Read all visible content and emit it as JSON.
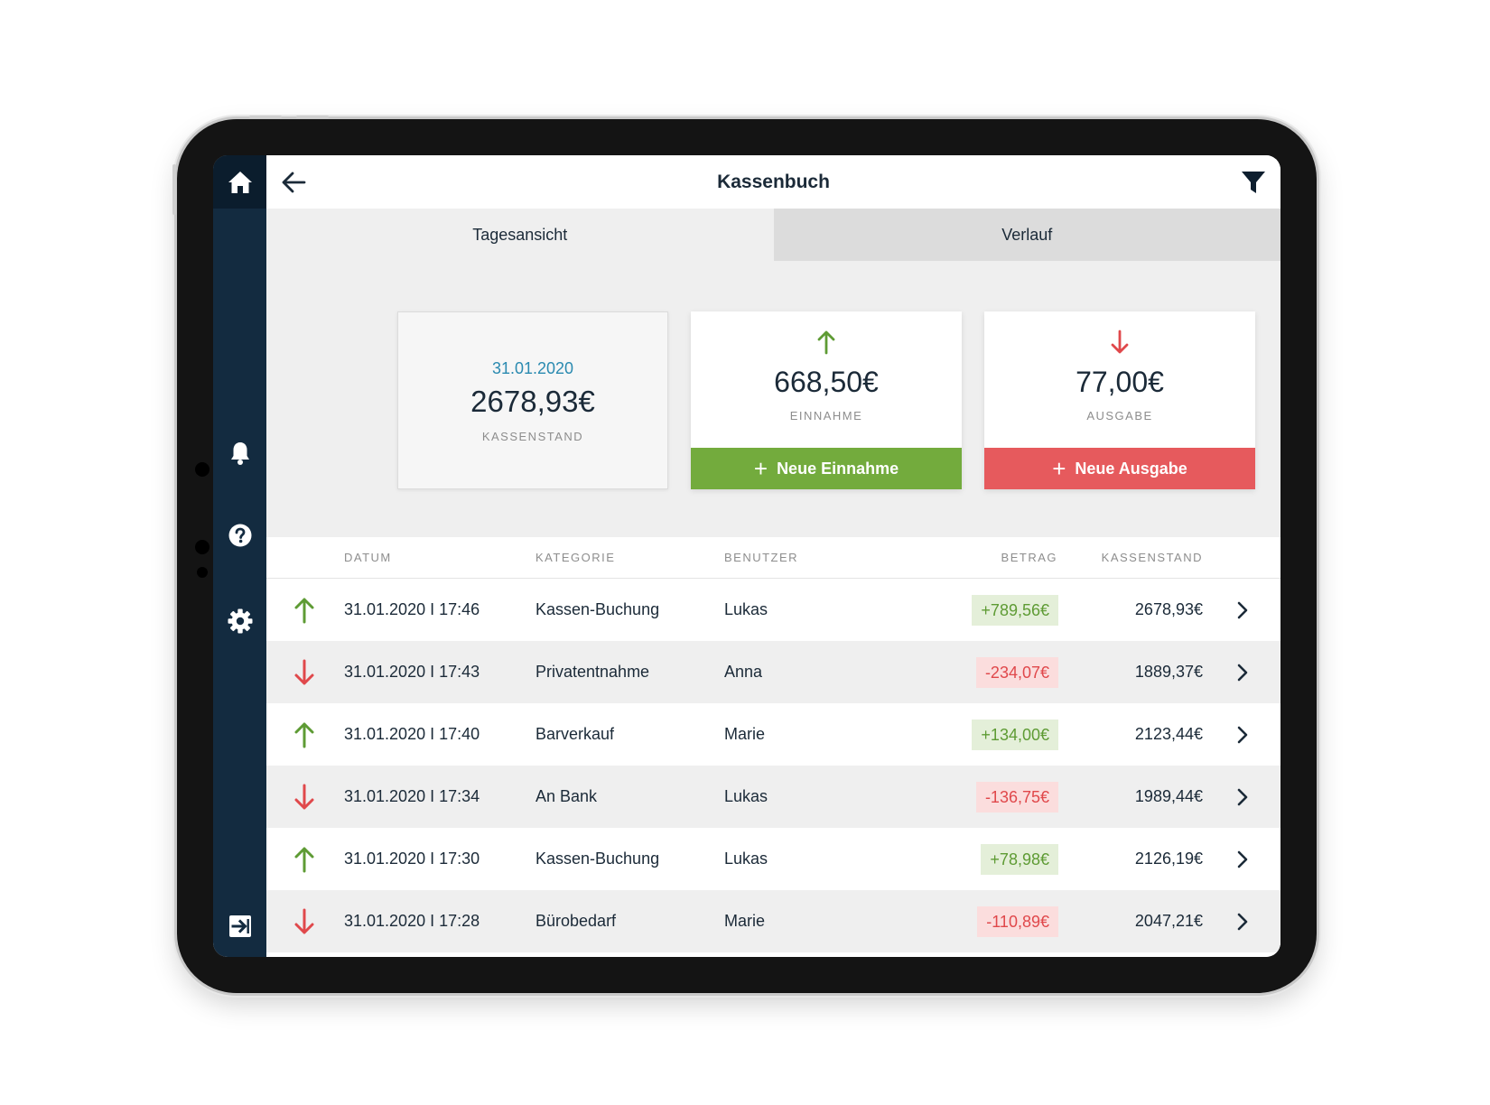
{
  "header": {
    "title": "Kassenbuch"
  },
  "tabs": [
    {
      "label": "Tagesansicht",
      "active": true
    },
    {
      "label": "Verlauf",
      "active": false
    }
  ],
  "summary": {
    "balance": {
      "date": "31.01.2020",
      "value": "2678,93€",
      "label": "KASSENSTAND"
    },
    "income": {
      "value": "668,50€",
      "label": "EINNAHME",
      "button": "Neue Einnahme"
    },
    "expense": {
      "value": "77,00€",
      "label": "AUSGABE",
      "button": "Neue Ausgabe"
    }
  },
  "table": {
    "columns": [
      "DATUM",
      "KATEGORIE",
      "BENUTZER",
      "BETRAG",
      "KASSENSTAND"
    ],
    "rows": [
      {
        "direction": "up",
        "datum": "31.01.2020 I 17:46",
        "kategorie": "Kassen-Buchung",
        "benutzer": "Lukas",
        "betrag": "+789,56€",
        "kassenstand": "2678,93€"
      },
      {
        "direction": "down",
        "datum": "31.01.2020 I 17:43",
        "kategorie": "Privatentnahme",
        "benutzer": "Anna",
        "betrag": "-234,07€",
        "kassenstand": "1889,37€"
      },
      {
        "direction": "up",
        "datum": "31.01.2020 I 17:40",
        "kategorie": "Barverkauf",
        "benutzer": "Marie",
        "betrag": "+134,00€",
        "kassenstand": "2123,44€"
      },
      {
        "direction": "down",
        "datum": "31.01.2020 I 17:34",
        "kategorie": "An Bank",
        "benutzer": "Lukas",
        "betrag": "-136,75€",
        "kassenstand": "1989,44€"
      },
      {
        "direction": "up",
        "datum": "31.01.2020 I 17:30",
        "kategorie": "Kassen-Buchung",
        "benutzer": "Lukas",
        "betrag": "+78,98€",
        "kassenstand": "2126,19€"
      },
      {
        "direction": "down",
        "datum": "31.01.2020 I 17:28",
        "kategorie": "Bürobedarf",
        "benutzer": "Marie",
        "betrag": "-110,89€",
        "kassenstand": "2047,21€"
      }
    ]
  },
  "sidebar": {
    "icons": [
      "home-icon",
      "bell-icon",
      "help-icon",
      "gear-icon",
      "logout-icon"
    ]
  },
  "colors": {
    "sidebar": "#132b40",
    "sidebar_active": "#0b1d2d",
    "income": "#73ab3d",
    "expense": "#e65a5d",
    "date_accent": "#2a8ab0",
    "text": "#1b2a38"
  }
}
